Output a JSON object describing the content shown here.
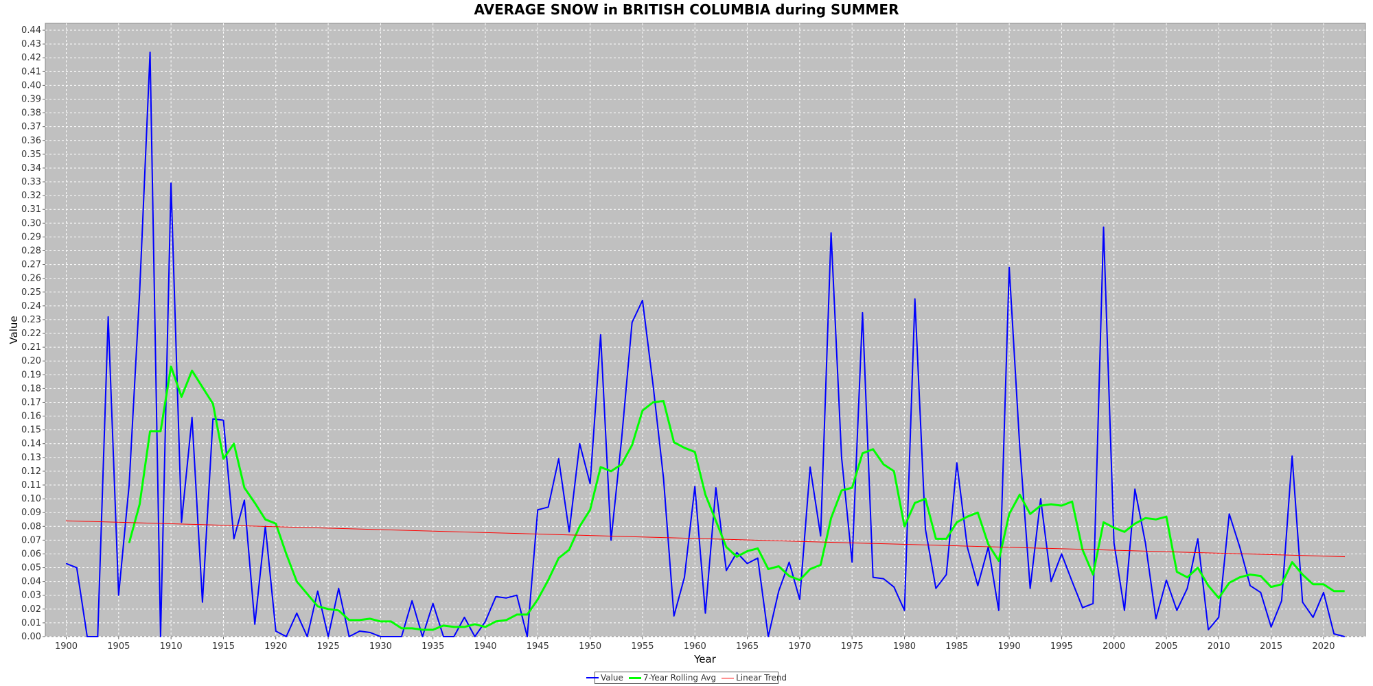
{
  "chart_data": {
    "type": "line",
    "title": "AVERAGE SNOW in BRITISH COLUMBIA during SUMMER",
    "xlabel": "Year",
    "ylabel": "Value",
    "xlim": [
      1898,
      2024
    ],
    "ylim": [
      0,
      0.445
    ],
    "grid": true,
    "background": "#c0c0c0",
    "legend_position": "bottom-center",
    "x_ticks": [
      1900,
      1905,
      1910,
      1915,
      1920,
      1925,
      1930,
      1935,
      1940,
      1945,
      1950,
      1955,
      1960,
      1965,
      1970,
      1975,
      1980,
      1985,
      1990,
      1995,
      2000,
      2005,
      2010,
      2015,
      2020
    ],
    "y_ticks": [
      "0.00",
      "0.01",
      "0.02",
      "0.03",
      "0.04",
      "0.05",
      "0.06",
      "0.07",
      "0.08",
      "0.09",
      "0.10",
      "0.11",
      "0.12",
      "0.13",
      "0.14",
      "0.15",
      "0.16",
      "0.17",
      "0.18",
      "0.19",
      "0.20",
      "0.21",
      "0.22",
      "0.23",
      "0.24",
      "0.25",
      "0.26",
      "0.27",
      "0.28",
      "0.29",
      "0.30",
      "0.31",
      "0.32",
      "0.33",
      "0.34",
      "0.35",
      "0.36",
      "0.37",
      "0.38",
      "0.39",
      "0.40",
      "0.41",
      "0.42",
      "0.43",
      "0.44"
    ],
    "series": [
      {
        "name": "Value",
        "color": "#0000ff",
        "x_start": 1900,
        "values": [
          0.053,
          0.05,
          0.0,
          0.0,
          0.232,
          0.03,
          0.11,
          0.25,
          0.424,
          0.0,
          0.329,
          0.083,
          0.159,
          0.025,
          0.158,
          0.157,
          0.071,
          0.099,
          0.009,
          0.08,
          0.004,
          0.0,
          0.017,
          0.0,
          0.033,
          0.0,
          0.035,
          0.0,
          0.004,
          0.003,
          0.0,
          0.0,
          0.0,
          0.026,
          0.0,
          0.024,
          0.0,
          0.0,
          0.014,
          0.0,
          0.011,
          0.029,
          0.028,
          0.03,
          0.0,
          0.092,
          0.094,
          0.129,
          0.076,
          0.14,
          0.111,
          0.219,
          0.07,
          0.143,
          0.228,
          0.244,
          0.183,
          0.115,
          0.015,
          0.043,
          0.109,
          0.017,
          0.108,
          0.048,
          0.061,
          0.053,
          0.057,
          0.0,
          0.033,
          0.054,
          0.027,
          0.123,
          0.073,
          0.293,
          0.13,
          0.054,
          0.235,
          0.043,
          0.042,
          0.036,
          0.019,
          0.245,
          0.078,
          0.035,
          0.045,
          0.126,
          0.065,
          0.037,
          0.065,
          0.019,
          0.268,
          0.138,
          0.035,
          0.1,
          0.04,
          0.06,
          0.04,
          0.021,
          0.024,
          0.297,
          0.068,
          0.019,
          0.107,
          0.068,
          0.013,
          0.041,
          0.019,
          0.035,
          0.071,
          0.005,
          0.014,
          0.089,
          0.065,
          0.037,
          0.032,
          0.007,
          0.026,
          0.131,
          0.025,
          0.014,
          0.032,
          0.002,
          0.0
        ]
      },
      {
        "name": "7-Year Rolling Avg",
        "color": "#00ff00",
        "x_start": 1906,
        "values": [
          0.068,
          0.096,
          0.149,
          0.149,
          0.196,
          0.174,
          0.193,
          0.181,
          0.169,
          0.129,
          0.14,
          0.108,
          0.097,
          0.085,
          0.082,
          0.06,
          0.04,
          0.031,
          0.022,
          0.02,
          0.019,
          0.012,
          0.012,
          0.013,
          0.011,
          0.011,
          0.006,
          0.006,
          0.005,
          0.005,
          0.008,
          0.007,
          0.007,
          0.009,
          0.007,
          0.011,
          0.012,
          0.016,
          0.016,
          0.027,
          0.041,
          0.057,
          0.063,
          0.08,
          0.092,
          0.123,
          0.12,
          0.125,
          0.139,
          0.164,
          0.17,
          0.171,
          0.141,
          0.137,
          0.134,
          0.103,
          0.084,
          0.065,
          0.058,
          0.062,
          0.064,
          0.049,
          0.051,
          0.044,
          0.041,
          0.049,
          0.052,
          0.086,
          0.106,
          0.108,
          0.133,
          0.136,
          0.125,
          0.12,
          0.08,
          0.097,
          0.1,
          0.071,
          0.071,
          0.083,
          0.087,
          0.09,
          0.067,
          0.055,
          0.089,
          0.103,
          0.089,
          0.095,
          0.096,
          0.095,
          0.098,
          0.063,
          0.045,
          0.083,
          0.079,
          0.076,
          0.082,
          0.086,
          0.085,
          0.087,
          0.047,
          0.043,
          0.05,
          0.037,
          0.028,
          0.039,
          0.043,
          0.045,
          0.044,
          0.036,
          0.038,
          0.054,
          0.045,
          0.038,
          0.038,
          0.033,
          0.033
        ]
      },
      {
        "name": "Linear Trend",
        "color": "#ff0000",
        "x": [
          1900,
          2022
        ],
        "values": [
          0.084,
          0.058
        ]
      }
    ]
  }
}
